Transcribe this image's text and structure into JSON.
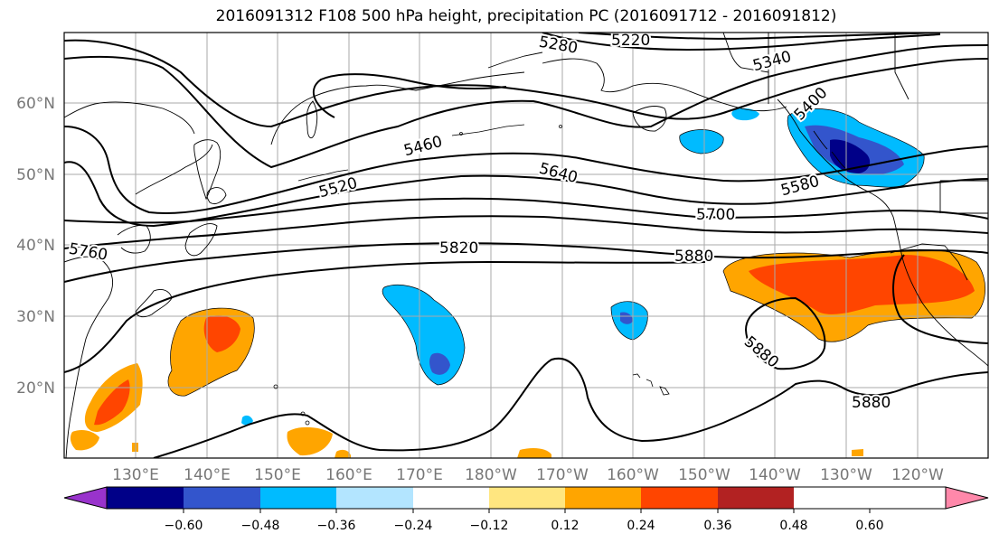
{
  "title": "2016091312 F108 500 hPa height, precipitation PC (2016091712 - 2016091812)",
  "map": {
    "lat_labels": [
      "60°N",
      "50°N",
      "40°N",
      "30°N",
      "20°N"
    ],
    "lon_labels": [
      "130°E",
      "140°E",
      "150°E",
      "160°E",
      "170°E",
      "180°W",
      "170°W",
      "160°W",
      "150°W",
      "140°W",
      "130°W",
      "120°W"
    ],
    "contour_labels": [
      "5280",
      "5220",
      "5340",
      "5400",
      "5460",
      "5520",
      "5640",
      "5580",
      "5700",
      "5760",
      "5820",
      "5880",
      "5880",
      "5880"
    ]
  },
  "colorbar": {
    "colors": [
      "#9933cc",
      "#000088",
      "#3355cc",
      "#00bbff",
      "#b3e5ff",
      "#ffffff",
      "#ffe680",
      "#ffa500",
      "#ff4500",
      "#b22222",
      "#ff88aa"
    ],
    "tick_labels": [
      "−0.60",
      "−0.48",
      "−0.36",
      "−0.24",
      "−0.12",
      "0.12",
      "0.24",
      "0.36",
      "0.48",
      "0.60"
    ]
  }
}
